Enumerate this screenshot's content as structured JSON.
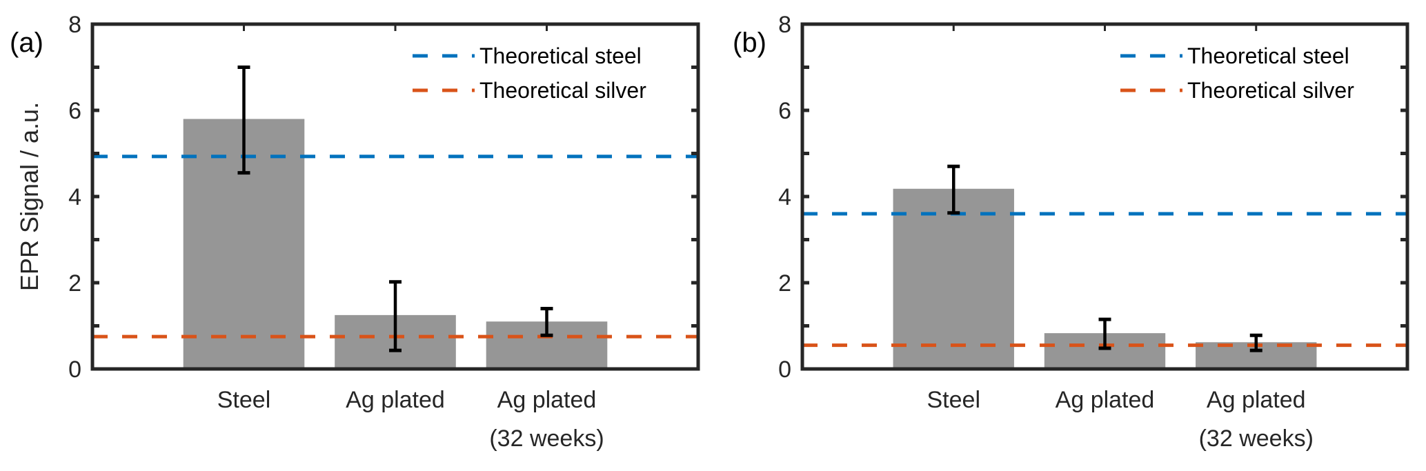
{
  "chart_data": [
    {
      "type": "bar",
      "panel_label": "(a)",
      "categories": [
        [
          "Steel"
        ],
        [
          "Ag plated"
        ],
        [
          "Ag plated",
          "(32 weeks)"
        ]
      ],
      "values": [
        5.8,
        1.25,
        1.1
      ],
      "error_bars": [
        {
          "lower": 4.55,
          "upper": 7.0
        },
        {
          "lower": 0.43,
          "upper": 2.02
        },
        {
          "lower": 0.78,
          "upper": 1.4
        }
      ],
      "reference_lines": [
        {
          "name": "Theoretical steel",
          "value": 4.93,
          "color": "#0072BD",
          "style": "dashed"
        },
        {
          "name": "Theoretical silver",
          "value": 0.75,
          "color": "#D95319",
          "style": "dashed"
        }
      ],
      "bar_color": "#969696",
      "xlabel": "",
      "ylabel": "EPR Signal / a.u.",
      "ylim": [
        0,
        8
      ],
      "yticks": [
        0,
        2,
        4,
        6,
        8
      ],
      "yticks_minor": [
        1,
        3,
        5,
        7
      ],
      "xlim": [
        0,
        4
      ],
      "grid": false,
      "legend": {
        "position": "top-right",
        "entries": [
          "Theoretical steel",
          "Theoretical silver"
        ]
      }
    },
    {
      "type": "bar",
      "panel_label": "(b)",
      "categories": [
        [
          "Steel"
        ],
        [
          "Ag plated"
        ],
        [
          "Ag plated",
          "(32 weeks)"
        ]
      ],
      "values": [
        4.18,
        0.83,
        0.62
      ],
      "error_bars": [
        {
          "lower": 3.62,
          "upper": 4.7
        },
        {
          "lower": 0.48,
          "upper": 1.15
        },
        {
          "lower": 0.43,
          "upper": 0.78
        }
      ],
      "reference_lines": [
        {
          "name": "Theoretical steel",
          "value": 3.6,
          "color": "#0072BD",
          "style": "dashed"
        },
        {
          "name": "Theoretical silver",
          "value": 0.55,
          "color": "#D95319",
          "style": "dashed"
        }
      ],
      "bar_color": "#969696",
      "xlabel": "",
      "ylabel": "",
      "ylim": [
        0,
        8
      ],
      "yticks": [
        0,
        2,
        4,
        6,
        8
      ],
      "yticks_minor": [
        1,
        3,
        5,
        7
      ],
      "xlim": [
        0,
        4
      ],
      "grid": false,
      "legend": {
        "position": "top-right",
        "entries": [
          "Theoretical steel",
          "Theoretical silver"
        ]
      }
    }
  ]
}
